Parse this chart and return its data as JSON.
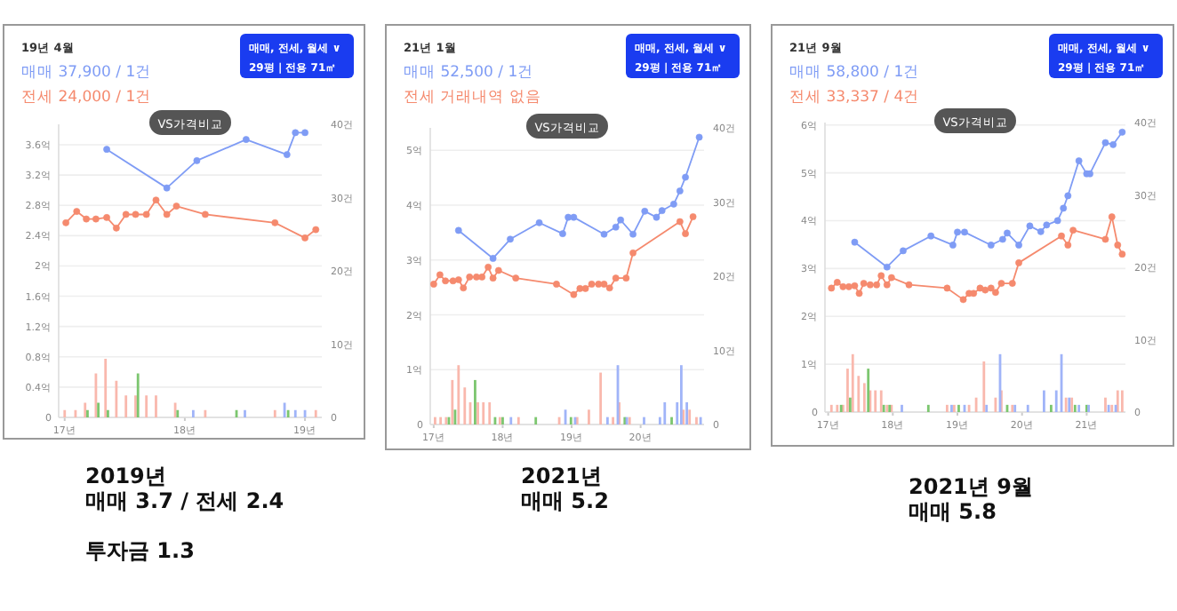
{
  "chart_data": [
    {
      "type": "line",
      "title": "19년 4월",
      "annotations": [
        "매매 37,900 / 1건",
        "전세 24,000 / 1건",
        "매매, 전세, 월세 ∨",
        "29평 | 전용 71㎡",
        "VS가격비교",
        "2019년\n매매 3.7 / 전세 2.4\n\n투자금 1.3"
      ],
      "xlim": [
        16.95,
        19.14
      ],
      "xticks": [
        {
          "value": 17,
          "label": "17년"
        },
        {
          "value": 18,
          "label": "18년"
        },
        {
          "value": 19,
          "label": "19년"
        }
      ],
      "ylim": [
        0,
        3.87
      ],
      "yticks": [
        {
          "value": 0,
          "label": "0"
        },
        {
          "value": 0.4,
          "label": "0.4억"
        },
        {
          "value": 0.8,
          "label": "0.8억"
        },
        {
          "value": 1.2,
          "label": "1.2억"
        },
        {
          "value": 1.6,
          "label": "1.6억"
        },
        {
          "value": 2,
          "label": "2억"
        },
        {
          "value": 2.4,
          "label": "2.4억"
        },
        {
          "value": 2.8,
          "label": "2.8억"
        },
        {
          "value": 3.2,
          "label": "3.2억"
        },
        {
          "value": 3.6,
          "label": "3.6억"
        }
      ],
      "y2lim": [
        0,
        40
      ],
      "y2ticks": [
        {
          "value": 0,
          "label": "0"
        },
        {
          "value": 10,
          "label": "10건"
        },
        {
          "value": 20,
          "label": "20건"
        },
        {
          "value": 30,
          "label": "30건"
        },
        {
          "value": 40,
          "label": "40건"
        }
      ],
      "grid": "y",
      "marker": "circle",
      "series": [
        {
          "color": "#7f9cf5",
          "x": [
            17.35,
            17.85,
            18.1,
            18.51,
            18.85,
            18.92,
            19.0
          ],
          "values": [
            3.54,
            3.03,
            3.39,
            3.67,
            3.47,
            3.76,
            3.76
          ]
        },
        {
          "color": "#f58a6e",
          "x": [
            17.01,
            17.1,
            17.18,
            17.26,
            17.35,
            17.43,
            17.51,
            17.59,
            17.68,
            17.76,
            17.85,
            17.93,
            18.17,
            18.75,
            19.0,
            19.09
          ],
          "values": [
            2.57,
            2.72,
            2.62,
            2.62,
            2.64,
            2.5,
            2.68,
            2.68,
            2.68,
            2.87,
            2.68,
            2.79,
            2.68,
            2.57,
            2.37,
            2.48
          ]
        },
        {
          "type": "bar",
          "axis": "y2",
          "color": "#f9b8ad",
          "x": [
            17.0,
            17.09,
            17.17,
            17.26,
            17.34,
            17.43,
            17.51,
            17.59,
            17.68,
            17.76,
            17.92,
            18.17,
            18.75,
            19.09
          ],
          "values": [
            1,
            1,
            2,
            6,
            8,
            5,
            3,
            3,
            3,
            3,
            2,
            1,
            1,
            1
          ]
        },
        {
          "type": "bar",
          "axis": "y2",
          "color": "#7cc66f",
          "x": [
            17.19,
            17.28,
            17.36,
            17.61,
            17.94,
            18.43,
            18.86
          ],
          "values": [
            1,
            2,
            1,
            6,
            1,
            1,
            1
          ]
        },
        {
          "type": "bar",
          "axis": "y2",
          "color": "#a0b4f8",
          "x": [
            18.07,
            18.5,
            18.83,
            18.92,
            19.0
          ],
          "values": [
            1,
            1,
            2,
            1,
            1
          ]
        }
      ]
    },
    {
      "type": "line",
      "title": "21년 1월",
      "annotations": [
        "매매 52,500 / 1건",
        "전세 거래내역 없음",
        "매매, 전세, 월세 ∨",
        "29평 | 전용 71㎡",
        "VS가격비교",
        "2021년\n매매 5.2"
      ],
      "xlim": [
        16.95,
        20.92
      ],
      "xticks": [
        {
          "value": 17,
          "label": "17년"
        },
        {
          "value": 18,
          "label": "18년"
        },
        {
          "value": 19,
          "label": "19년"
        },
        {
          "value": 20,
          "label": "20년"
        }
      ],
      "ylim": [
        0,
        5.41
      ],
      "yticks": [
        {
          "value": 0,
          "label": "0"
        },
        {
          "value": 1,
          "label": "1억"
        },
        {
          "value": 2,
          "label": "2억"
        },
        {
          "value": 3,
          "label": "3억"
        },
        {
          "value": 4,
          "label": "4억"
        },
        {
          "value": 5,
          "label": "5억"
        }
      ],
      "y2lim": [
        0,
        40
      ],
      "y2ticks": [
        {
          "value": 0,
          "label": "0"
        },
        {
          "value": 10,
          "label": "10건"
        },
        {
          "value": 20,
          "label": "20건"
        },
        {
          "value": 30,
          "label": "30건"
        },
        {
          "value": 40,
          "label": "40건"
        }
      ],
      "grid": "y",
      "marker": "circle",
      "series": [
        {
          "color": "#7f9cf5",
          "x": [
            17.36,
            17.86,
            18.11,
            18.53,
            18.87,
            18.95,
            19.03,
            19.47,
            19.64,
            19.71,
            19.89,
            20.06,
            20.23,
            20.31,
            20.48,
            20.57,
            20.65,
            20.85
          ],
          "values": [
            3.54,
            3.03,
            3.38,
            3.68,
            3.48,
            3.78,
            3.78,
            3.47,
            3.6,
            3.73,
            3.47,
            3.89,
            3.78,
            3.9,
            4.02,
            4.26,
            4.51,
            5.24
          ]
        },
        {
          "color": "#f58a6e",
          "x": [
            17.0,
            17.09,
            17.17,
            17.28,
            17.36,
            17.43,
            17.52,
            17.62,
            17.7,
            17.79,
            17.86,
            17.94,
            18.19,
            18.78,
            19.03,
            19.12,
            19.2,
            19.29,
            19.39,
            19.47,
            19.55,
            19.64,
            19.79,
            19.89,
            20.57,
            20.65,
            20.76
          ],
          "values": [
            2.56,
            2.73,
            2.62,
            2.62,
            2.64,
            2.49,
            2.69,
            2.69,
            2.69,
            2.87,
            2.67,
            2.81,
            2.67,
            2.56,
            2.37,
            2.48,
            2.48,
            2.56,
            2.56,
            2.56,
            2.49,
            2.67,
            2.67,
            3.13,
            3.7,
            3.48,
            3.79
          ]
        },
        {
          "type": "bar",
          "axis": "y2",
          "color": "#f9b8ad",
          "x": [
            17.02,
            17.1,
            17.18,
            17.27,
            17.36,
            17.45,
            17.53,
            17.64,
            17.72,
            17.81,
            17.96,
            18.23,
            18.82,
            19.08,
            19.25,
            19.42,
            19.6,
            19.69,
            19.84,
            20.62,
            20.71,
            20.81
          ],
          "values": [
            1,
            1,
            1,
            6,
            8,
            5,
            3,
            3,
            3,
            3,
            1,
            1,
            1,
            1,
            2,
            7,
            1,
            3,
            1,
            2,
            2,
            1
          ]
        },
        {
          "type": "bar",
          "axis": "y2",
          "color": "#7cc66f",
          "x": [
            17.22,
            17.31,
            17.6,
            17.89,
            18.0,
            18.48,
            18.99,
            19.77,
            20.45
          ],
          "values": [
            1,
            2,
            6,
            1,
            1,
            1,
            1,
            1,
            1
          ]
        },
        {
          "type": "bar",
          "axis": "y2",
          "color": "#a0b4f8",
          "x": [
            18.12,
            18.91,
            19.05,
            19.52,
            19.67,
            19.8,
            20.05,
            20.28,
            20.35,
            20.53,
            20.59,
            20.67,
            20.87
          ],
          "values": [
            1,
            2,
            1,
            1,
            8,
            1,
            1,
            1,
            3,
            3,
            8,
            3,
            1
          ]
        }
      ]
    },
    {
      "type": "line",
      "title": "21년 9월",
      "annotations": [
        "매매 58,800 / 1건",
        "전세 33,337 / 4건",
        "매매, 전세, 월세 ∨",
        "29평 | 전용 71㎡",
        "VS가격비교",
        "2021년 9월\n매매 5.8"
      ],
      "xlim": [
        16.95,
        21.6
      ],
      "xticks": [
        {
          "value": 17,
          "label": "17년"
        },
        {
          "value": 18,
          "label": "18년"
        },
        {
          "value": 19,
          "label": "19년"
        },
        {
          "value": 20,
          "label": "20년"
        },
        {
          "value": 21,
          "label": "21년"
        }
      ],
      "ylim": [
        0,
        6.05
      ],
      "yticks": [
        {
          "value": 0,
          "label": "0"
        },
        {
          "value": 1,
          "label": "1억"
        },
        {
          "value": 2,
          "label": "2억"
        },
        {
          "value": 3,
          "label": "3억"
        },
        {
          "value": 4,
          "label": "4억"
        },
        {
          "value": 5,
          "label": "5억"
        },
        {
          "value": 6,
          "label": "6억"
        }
      ],
      "y2lim": [
        0,
        40
      ],
      "y2ticks": [
        {
          "value": 0,
          "label": "0"
        },
        {
          "value": 10,
          "label": "10건"
        },
        {
          "value": 20,
          "label": "20건"
        },
        {
          "value": 30,
          "label": "30건"
        },
        {
          "value": 40,
          "label": "40건"
        }
      ],
      "grid": "y",
      "marker": "circle",
      "series": [
        {
          "color": "#7f9cf5",
          "x": [
            17.41,
            17.91,
            18.16,
            18.59,
            18.93,
            19.0,
            19.11,
            19.52,
            19.7,
            19.77,
            19.95,
            20.12,
            20.29,
            20.38,
            20.55,
            20.64,
            20.71,
            20.88,
            21.0,
            21.05,
            21.29,
            21.41,
            21.55
          ],
          "values": [
            3.55,
            3.03,
            3.37,
            3.68,
            3.49,
            3.76,
            3.76,
            3.49,
            3.61,
            3.74,
            3.49,
            3.89,
            3.77,
            3.91,
            4.0,
            4.26,
            4.52,
            5.25,
            4.98,
            4.98,
            5.63,
            5.59,
            5.85
          ]
        },
        {
          "color": "#f58a6e",
          "x": [
            17.05,
            17.14,
            17.23,
            17.32,
            17.41,
            17.48,
            17.55,
            17.65,
            17.75,
            17.82,
            17.91,
            17.98,
            18.25,
            18.84,
            19.09,
            19.18,
            19.25,
            19.35,
            19.43,
            19.52,
            19.59,
            19.68,
            19.85,
            19.95,
            20.61,
            20.71,
            20.79,
            21.29,
            21.39,
            21.48,
            21.55
          ],
          "values": [
            2.59,
            2.71,
            2.62,
            2.62,
            2.64,
            2.48,
            2.69,
            2.66,
            2.66,
            2.85,
            2.66,
            2.81,
            2.66,
            2.59,
            2.35,
            2.48,
            2.48,
            2.59,
            2.55,
            2.59,
            2.5,
            2.69,
            2.69,
            3.12,
            3.68,
            3.49,
            3.8,
            3.61,
            4.08,
            3.49,
            3.3
          ]
        },
        {
          "type": "bar",
          "axis": "y2",
          "color": "#f9b8ad",
          "x": [
            17.05,
            17.14,
            17.23,
            17.3,
            17.38,
            17.47,
            17.56,
            17.65,
            17.73,
            17.82,
            17.91,
            17.98,
            18.84,
            18.95,
            19.18,
            19.29,
            19.41,
            19.59,
            19.68,
            19.85,
            20.68,
            20.77,
            21.29,
            21.39,
            21.48,
            21.55
          ],
          "values": [
            1,
            1,
            1,
            6,
            8,
            5,
            4,
            3,
            3,
            3,
            1,
            1,
            1,
            1,
            1,
            2,
            7,
            2,
            3,
            1,
            2,
            2,
            2,
            1,
            3,
            3
          ]
        },
        {
          "type": "bar",
          "axis": "y2",
          "color": "#7cc66f",
          "x": [
            17.2,
            17.34,
            17.62,
            17.86,
            17.95,
            18.55,
            19.02,
            19.77,
            20.45,
            20.82,
            21.0
          ],
          "values": [
            1,
            2,
            6,
            1,
            1,
            1,
            1,
            1,
            1,
            1,
            1
          ]
        },
        {
          "type": "bar",
          "axis": "y2",
          "color": "#a0b4f8",
          "x": [
            18.14,
            18.91,
            19.11,
            19.45,
            19.66,
            19.89,
            20.09,
            20.34,
            20.53,
            20.61,
            20.73,
            20.88,
            21.03,
            21.34,
            21.45
          ],
          "values": [
            1,
            1,
            1,
            1,
            8,
            1,
            1,
            3,
            3,
            8,
            2,
            1,
            1,
            1,
            1
          ]
        }
      ]
    }
  ]
}
